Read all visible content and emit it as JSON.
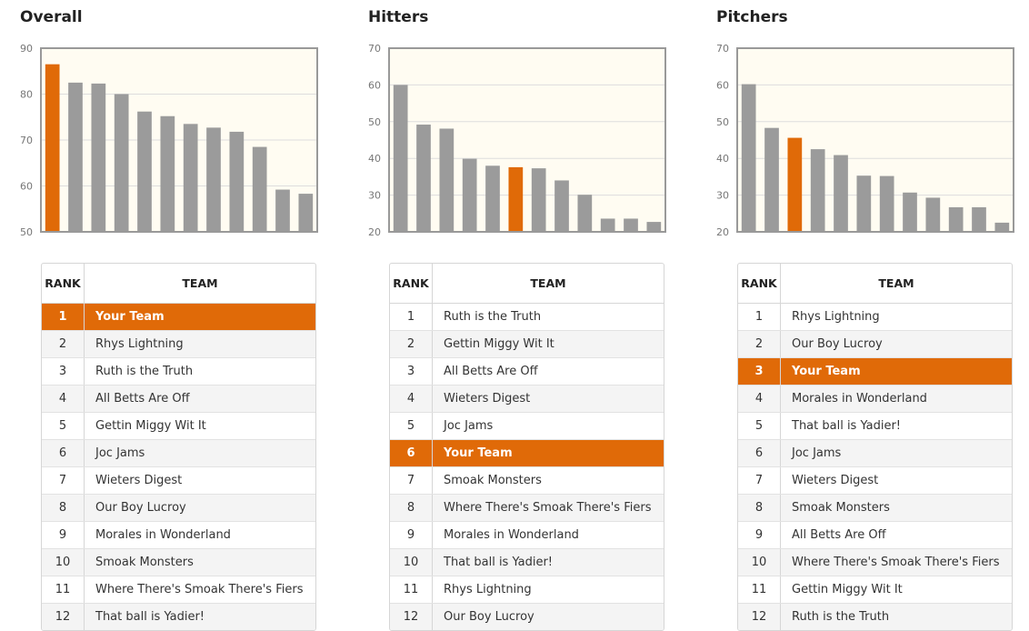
{
  "colors": {
    "highlight": "#e06a08",
    "bar": "#9b9b9b",
    "plot_bg": "#fffcf2",
    "grid": "#dddddd",
    "axis": "#999999"
  },
  "table_headers": {
    "rank": "RANK",
    "team": "TEAM"
  },
  "panels": [
    {
      "title": "Overall",
      "chart_data": {
        "type": "bar",
        "values": [
          86.5,
          82.5,
          82.3,
          80.0,
          76.2,
          75.2,
          73.5,
          72.7,
          71.8,
          68.5,
          59.2,
          58.3
        ],
        "highlight_index": 0,
        "ylim": [
          50,
          90
        ],
        "yticks": [
          50,
          60,
          70,
          80,
          90
        ]
      },
      "rows": [
        {
          "rank": "1",
          "team": "Your Team",
          "you": true
        },
        {
          "rank": "2",
          "team": "Rhys Lightning"
        },
        {
          "rank": "3",
          "team": "Ruth is the Truth"
        },
        {
          "rank": "4",
          "team": "All Betts Are Off"
        },
        {
          "rank": "5",
          "team": "Gettin Miggy Wit It"
        },
        {
          "rank": "6",
          "team": "Joc Jams"
        },
        {
          "rank": "7",
          "team": "Wieters Digest"
        },
        {
          "rank": "8",
          "team": "Our Boy Lucroy"
        },
        {
          "rank": "9",
          "team": "Morales in Wonderland"
        },
        {
          "rank": "10",
          "team": "Smoak Monsters"
        },
        {
          "rank": "11",
          "team": "Where There's Smoak There's Fiers"
        },
        {
          "rank": "12",
          "team": "That ball is Yadier!"
        }
      ]
    },
    {
      "title": "Hitters",
      "chart_data": {
        "type": "bar",
        "values": [
          60.0,
          49.2,
          48.1,
          39.9,
          38.0,
          37.6,
          37.3,
          34.0,
          30.1,
          23.6,
          23.6,
          22.7
        ],
        "highlight_index": 5,
        "ylim": [
          20,
          70
        ],
        "yticks": [
          20,
          30,
          40,
          50,
          60,
          70
        ]
      },
      "rows": [
        {
          "rank": "1",
          "team": "Ruth is the Truth"
        },
        {
          "rank": "2",
          "team": "Gettin Miggy Wit It"
        },
        {
          "rank": "3",
          "team": "All Betts Are Off"
        },
        {
          "rank": "4",
          "team": "Wieters Digest"
        },
        {
          "rank": "5",
          "team": "Joc Jams"
        },
        {
          "rank": "6",
          "team": "Your Team",
          "you": true
        },
        {
          "rank": "7",
          "team": "Smoak Monsters"
        },
        {
          "rank": "8",
          "team": "Where There's Smoak There's Fiers"
        },
        {
          "rank": "9",
          "team": "Morales in Wonderland"
        },
        {
          "rank": "10",
          "team": "That ball is Yadier!"
        },
        {
          "rank": "11",
          "team": "Rhys Lightning"
        },
        {
          "rank": "12",
          "team": "Our Boy Lucroy"
        }
      ]
    },
    {
      "title": "Pitchers",
      "chart_data": {
        "type": "bar",
        "values": [
          60.2,
          48.3,
          45.6,
          42.5,
          40.9,
          35.3,
          35.2,
          30.7,
          29.3,
          26.7,
          26.7,
          22.5
        ],
        "highlight_index": 2,
        "ylim": [
          20,
          70
        ],
        "yticks": [
          20,
          30,
          40,
          50,
          60,
          70
        ]
      },
      "rows": [
        {
          "rank": "1",
          "team": "Rhys Lightning"
        },
        {
          "rank": "2",
          "team": "Our Boy Lucroy"
        },
        {
          "rank": "3",
          "team": "Your Team",
          "you": true
        },
        {
          "rank": "4",
          "team": "Morales in Wonderland"
        },
        {
          "rank": "5",
          "team": "That ball is Yadier!"
        },
        {
          "rank": "6",
          "team": "Joc Jams"
        },
        {
          "rank": "7",
          "team": "Wieters Digest"
        },
        {
          "rank": "8",
          "team": "Smoak Monsters"
        },
        {
          "rank": "9",
          "team": "All Betts Are Off"
        },
        {
          "rank": "10",
          "team": "Where There's Smoak There's Fiers"
        },
        {
          "rank": "11",
          "team": "Gettin Miggy Wit It"
        },
        {
          "rank": "12",
          "team": "Ruth is the Truth"
        }
      ]
    }
  ]
}
